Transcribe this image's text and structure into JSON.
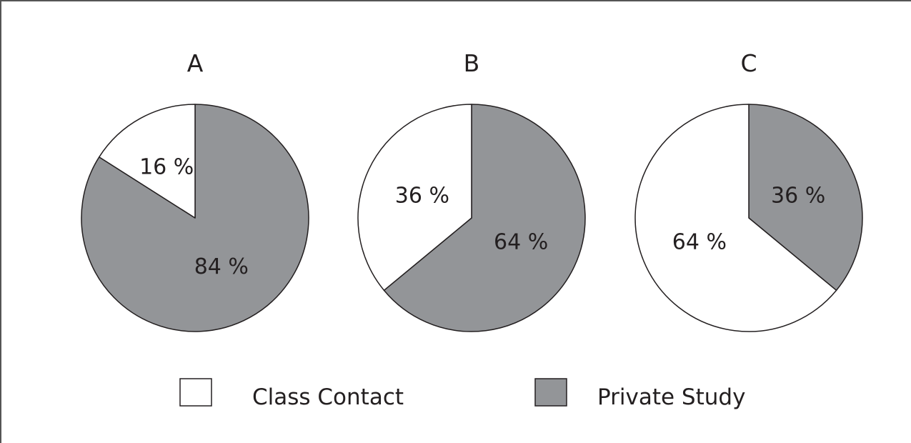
{
  "colors": {
    "class_contact": "#ffffff",
    "private_study": "#939598",
    "stroke": "#231f20"
  },
  "legend": {
    "class_contact_label": "Class Contact",
    "private_study_label": "Private Study"
  },
  "chart_data": [
    {
      "type": "pie",
      "title": "A",
      "slices": [
        {
          "name": "Private Study",
          "value": 84,
          "label": "84 %"
        },
        {
          "name": "Class Contact",
          "value": 16,
          "label": "16 %"
        }
      ]
    },
    {
      "type": "pie",
      "title": "B",
      "slices": [
        {
          "name": "Private Study",
          "value": 64,
          "label": "64 %"
        },
        {
          "name": "Class Contact",
          "value": 36,
          "label": "36 %"
        }
      ]
    },
    {
      "type": "pie",
      "title": "C",
      "slices": [
        {
          "name": "Private Study",
          "value": 36,
          "label": "36 %"
        },
        {
          "name": "Class Contact",
          "value": 64,
          "label": "64 %"
        }
      ]
    }
  ]
}
